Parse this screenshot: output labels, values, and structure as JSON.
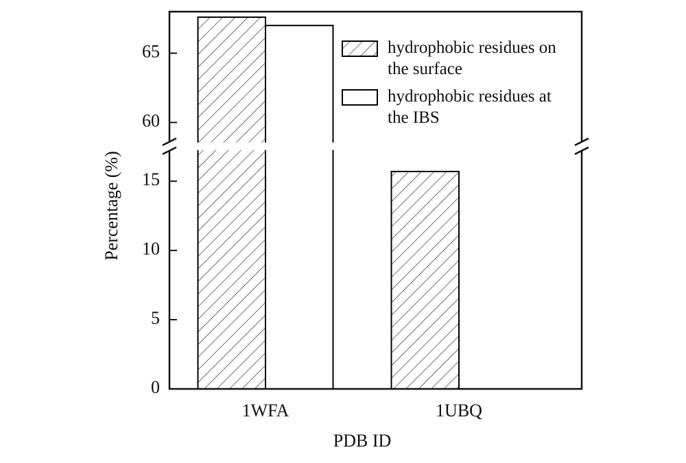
{
  "chart_data": {
    "type": "bar",
    "x_label": "PDB ID",
    "y_label": "Percentage (%)",
    "categories": [
      "1WFA",
      "1UBQ"
    ],
    "series": [
      {
        "name": "hydrophobic residues on the surface",
        "color": "#000000",
        "hatch": true,
        "values": [
          67.6,
          15.7
        ]
      },
      {
        "name": "hydrophobic residues at the IBS",
        "color": "#000000",
        "hatch": false,
        "values": [
          67.0,
          0
        ]
      }
    ],
    "ylim": [
      0,
      68
    ],
    "y_break": [
      17.2,
      58.6
    ],
    "yticks": [
      0,
      5,
      10,
      15,
      60,
      65
    ],
    "legend": "upper right"
  }
}
